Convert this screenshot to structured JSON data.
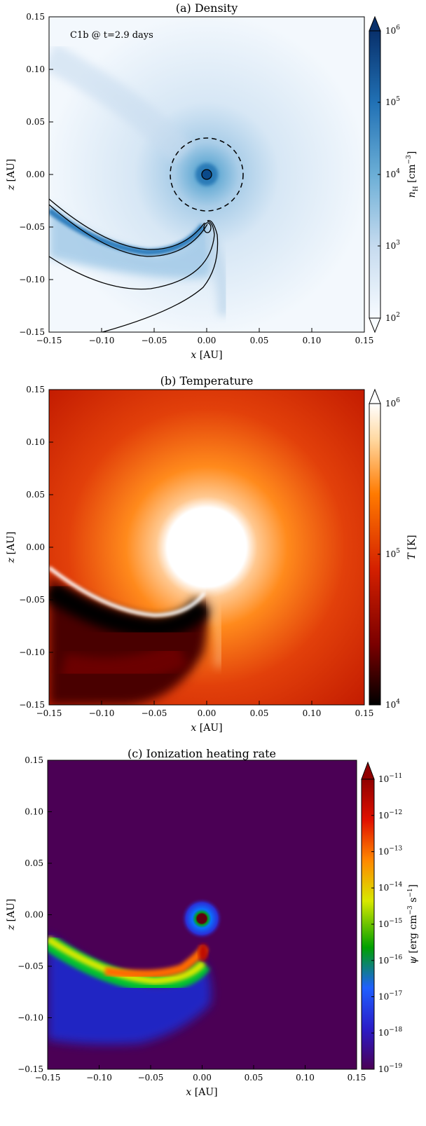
{
  "figure": {
    "panels": [
      {
        "title": "(a) Density",
        "annotation": "C1b @ t=2.9 days",
        "xlabel_var": "x",
        "xlabel_unit": " [AU]",
        "ylabel_var": "z",
        "ylabel_unit": " [AU]",
        "xticks": [
          "−0.15",
          "−0.10",
          "−0.05",
          "0.00",
          "0.05",
          "0.10",
          "0.15"
        ],
        "yticks": [
          "0.15",
          "0.10",
          "0.05",
          "0.00",
          "−0.05",
          "−0.10",
          "−0.15"
        ],
        "colorbar": {
          "label_var": "n",
          "label_sub": "H",
          "label_unit": " [cm",
          "label_exp": "−3",
          "label_close": "]",
          "ticks": [
            {
              "base": "10",
              "exp": "6"
            },
            {
              "base": "10",
              "exp": "5"
            },
            {
              "base": "10",
              "exp": "4"
            },
            {
              "base": "10",
              "exp": "3"
            },
            {
              "base": "10",
              "exp": "2"
            }
          ],
          "colors": [
            "#f7fbff",
            "#c6dbef",
            "#6baed6",
            "#2171b5",
            "#08306b"
          ]
        }
      },
      {
        "title": "(b) Temperature",
        "xlabel_var": "x",
        "xlabel_unit": " [AU]",
        "ylabel_var": "z",
        "ylabel_unit": " [AU]",
        "xticks": [
          "−0.15",
          "−0.10",
          "−0.05",
          "0.00",
          "0.05",
          "0.10",
          "0.15"
        ],
        "yticks": [
          "0.15",
          "0.10",
          "0.05",
          "0.00",
          "−0.05",
          "−0.10",
          "−0.15"
        ],
        "colorbar": {
          "label_var": "T",
          "label_unit": " [K]",
          "ticks": [
            {
              "base": "10",
              "exp": "6"
            },
            {
              "base": "10",
              "exp": "5"
            },
            {
              "base": "10",
              "exp": "4"
            }
          ],
          "colors": [
            "#000000",
            "#7a0000",
            "#d42000",
            "#ff7a00",
            "#ffd8a0",
            "#ffffff"
          ]
        }
      },
      {
        "title": "(c) Ionization heating rate",
        "xlabel_var": "x",
        "xlabel_unit": " [AU]",
        "ylabel_var": "z",
        "ylabel_unit": " [AU]",
        "xticks": [
          "−0.15",
          "−0.10",
          "−0.05",
          "0.00",
          "0.05",
          "0.10",
          "0.15"
        ],
        "yticks": [
          "0.15",
          "0.10",
          "0.05",
          "0.00",
          "−0.05",
          "−0.10",
          "−0.15"
        ],
        "colorbar": {
          "label_var": "ψ",
          "label_unit": " [erg cm",
          "label_exp1": "−3",
          "label_mid": " s",
          "label_exp2": "−1",
          "label_close": "]",
          "ticks": [
            {
              "base": "10",
              "exp": "−11"
            },
            {
              "base": "10",
              "exp": "−12"
            },
            {
              "base": "10",
              "exp": "−13"
            },
            {
              "base": "10",
              "exp": "−14"
            },
            {
              "base": "10",
              "exp": "−15"
            },
            {
              "base": "10",
              "exp": "−16"
            },
            {
              "base": "10",
              "exp": "−17"
            },
            {
              "base": "10",
              "exp": "−18"
            },
            {
              "base": "10",
              "exp": "−19"
            }
          ],
          "colors": [
            "#4b0055",
            "#2a1cc8",
            "#1f5fff",
            "#00a000",
            "#d8e800",
            "#ff8800",
            "#e01000",
            "#900000"
          ]
        }
      }
    ]
  },
  "chart_data": [
    {
      "type": "heatmap",
      "title": "(a) Density",
      "xlabel": "x [AU]",
      "ylabel": "z [AU]",
      "xlim": [
        -0.15,
        0.15
      ],
      "ylim": [
        -0.15,
        0.15
      ],
      "colorbar_label": "n_H [cm^-3]",
      "colorbar_range": [
        100,
        1000000
      ],
      "colorbar_scale": "log",
      "annotations": [
        "C1b @ t=2.9 days"
      ],
      "features": {
        "star_center": [
          0.0,
          0.0
        ],
        "dashed_circle_radius": 0.035,
        "planet_position": [
          0.0,
          -0.05
        ],
        "tail_direction": "curving toward lower-left"
      }
    },
    {
      "type": "heatmap",
      "title": "(b) Temperature",
      "xlabel": "x [AU]",
      "ylabel": "z [AU]",
      "xlim": [
        -0.15,
        0.15
      ],
      "ylim": [
        -0.15,
        0.15
      ],
      "colorbar_label": "T [K]",
      "colorbar_range": [
        10000,
        1000000
      ],
      "colorbar_scale": "log"
    },
    {
      "type": "heatmap",
      "title": "(c) Ionization heating rate",
      "xlabel": "x [AU]",
      "ylabel": "z [AU]",
      "xlim": [
        -0.15,
        0.15
      ],
      "ylim": [
        -0.15,
        0.15
      ],
      "colorbar_label": "ψ [erg cm^-3 s^-1]",
      "colorbar_range": [
        1e-19,
        1e-11
      ],
      "colorbar_scale": "log"
    }
  ]
}
